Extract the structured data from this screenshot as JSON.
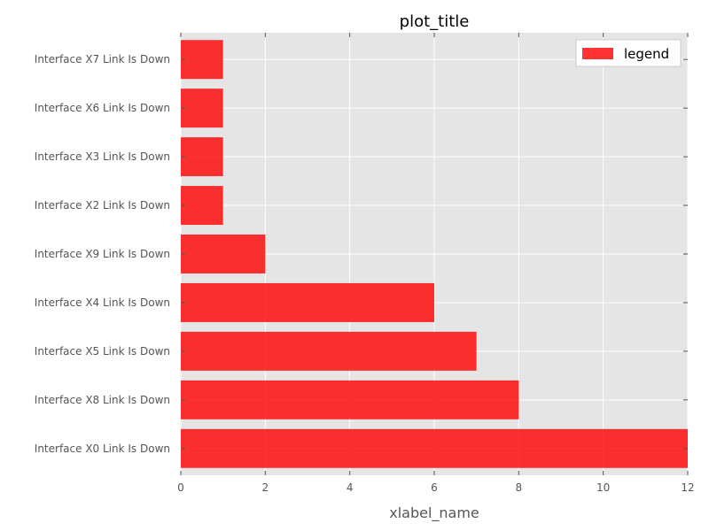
{
  "chart_data": {
    "type": "bar",
    "orientation": "horizontal",
    "title": "plot_title",
    "xlabel": "xlabel_name",
    "ylabel": "",
    "xlim": [
      0,
      12
    ],
    "x_ticks": [
      0,
      2,
      4,
      6,
      8,
      10,
      12
    ],
    "grid": true,
    "legend_placement": "top-right",
    "bar_color": "#ff0000",
    "plot_background": "#e5e5e5",
    "series": [
      {
        "name": "legend",
        "categories": [
          "Interface X0 Link Is Down",
          "Interface X8 Link Is Down",
          "Interface X5 Link Is Down",
          "Interface X4 Link Is Down",
          "Interface X9 Link Is Down",
          "Interface X2 Link Is Down",
          "Interface X3 Link Is Down",
          "Interface X6 Link Is Down",
          "Interface X7 Link Is Down"
        ],
        "values": [
          12,
          8,
          7,
          6,
          2,
          1,
          1,
          1,
          1
        ]
      }
    ]
  }
}
